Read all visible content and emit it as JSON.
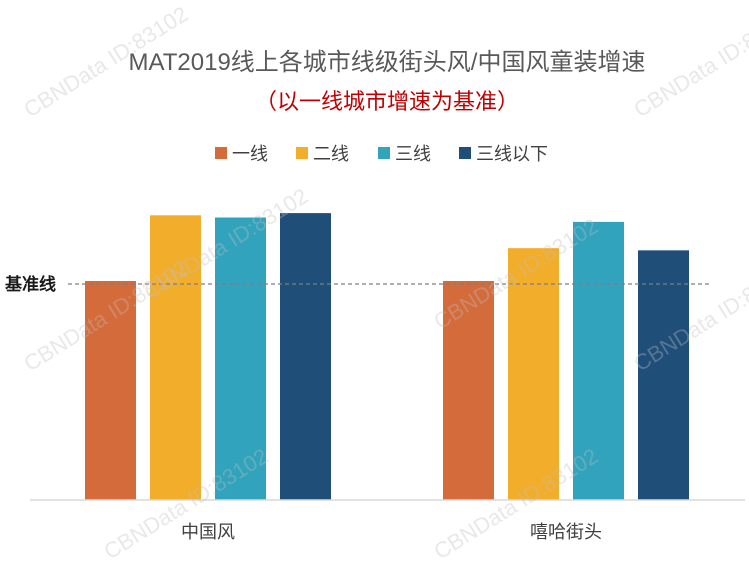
{
  "chart_data": {
    "type": "bar",
    "title": "MAT2019线上各城市线级街头风/中国风童装增速",
    "subtitle": "（以一线城市增速为基准）",
    "categories": [
      "中国风",
      "嘻哈街头"
    ],
    "series": [
      {
        "name": "一线",
        "values": [
          1.0,
          1.0
        ],
        "color": "#D46B3A"
      },
      {
        "name": "二线",
        "values": [
          1.3,
          1.15
        ],
        "color": "#F2AD2B"
      },
      {
        "name": "三线",
        "values": [
          1.29,
          1.27
        ],
        "color": "#31A3BD"
      },
      {
        "name": "三线以下",
        "values": [
          1.31,
          1.14
        ],
        "color": "#1F4E79"
      }
    ],
    "reference_line": {
      "label": "基准线",
      "value": 1.0
    },
    "xlabel": "",
    "ylabel": "",
    "ylim": [
      0,
      1.5
    ],
    "grid": false,
    "legend": "top"
  },
  "watermark": "CBNData ID:83102",
  "colors": {
    "title": "#595959",
    "subtitle": "#C00000",
    "axis": "#D9D9D9",
    "reference_line": "#7F7F7F"
  }
}
